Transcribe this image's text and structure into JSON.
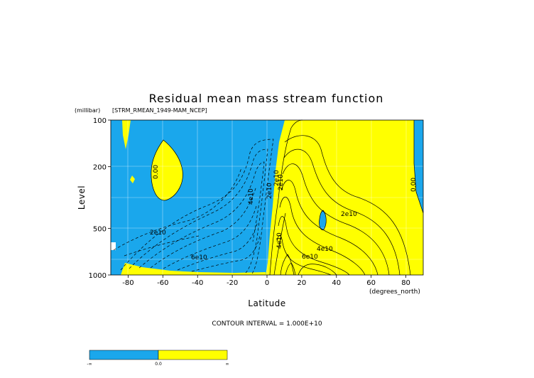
{
  "chart_data": {
    "type": "heatmap",
    "title": "Residual mean mass stream function",
    "subtitle": "[STRM_RMEAN_1949-MAM_NCEP]",
    "xlabel": "Latitude",
    "ylabel": "Level",
    "x_units": "(degrees_north)",
    "y_units": "(millibar)",
    "xlim": [
      -90,
      90
    ],
    "ylim": [
      1000,
      100
    ],
    "y_scale": "log",
    "grid": true,
    "x_ticks": [
      -80,
      -60,
      -40,
      -20,
      0,
      20,
      40,
      60,
      80
    ],
    "x_tick_labels": [
      "-80",
      "-60",
      "-40",
      "-20",
      "0",
      "20",
      "40",
      "60",
      "80"
    ],
    "y_ticks": [
      100,
      200,
      500,
      1000
    ],
    "y_tick_labels": [
      "100",
      "200",
      "500",
      "1000"
    ],
    "footer": "CONTOUR INTERVAL = 1.000E+10",
    "colorbar": {
      "labels": [
        "-∞",
        "0.0",
        "∞"
      ],
      "colors": [
        "#1aa7ec",
        "#ffff00"
      ]
    },
    "contour_labels": [
      "0.00",
      "0.00",
      "2e10",
      "4e10",
      "2e10",
      "6e10",
      "2e10",
      "2e10",
      "4e10",
      "2e10",
      "6e10",
      "4e10"
    ],
    "colors": {
      "negative": "#1aa7ec",
      "positive": "#ffff00",
      "gap": "#ffffff"
    }
  }
}
